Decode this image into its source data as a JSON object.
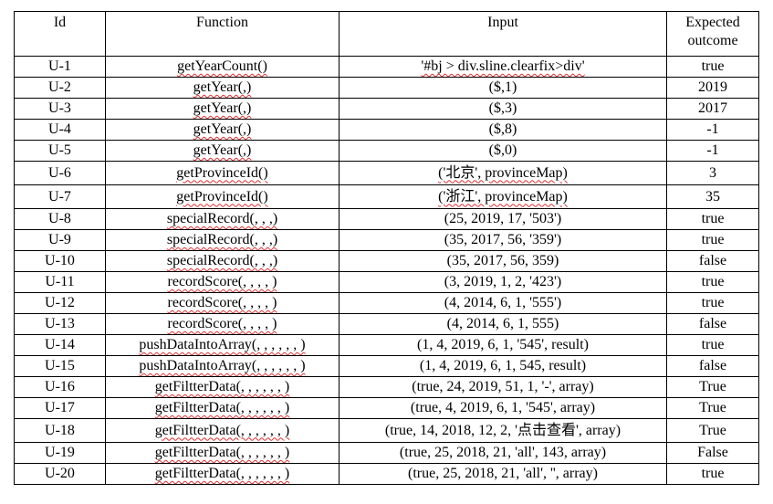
{
  "headers": {
    "id": "Id",
    "function": "Function",
    "input": "Input",
    "outcome_line1": "Expected",
    "outcome_line2": "outcome"
  },
  "rows": [
    {
      "id": "U-1",
      "function": "getYearCount()",
      "input": "'#bj > div.sline.clearfix>div'",
      "outcome": "true"
    },
    {
      "id": "U-2",
      "function": "getYear(,)",
      "input": "($,1)",
      "outcome": "2019"
    },
    {
      "id": "U-3",
      "function": "getYear(,)",
      "input": "($,3)",
      "outcome": "2017"
    },
    {
      "id": "U-4",
      "function": "getYear(,)",
      "input": "($,8)",
      "outcome": "-1"
    },
    {
      "id": "U-5",
      "function": "getYear(,)",
      "input": "($,0)",
      "outcome": "-1"
    },
    {
      "id": "U-6",
      "function": "getProvinceId()",
      "input": "('北京', provinceMap)",
      "outcome": "3"
    },
    {
      "id": "U-7",
      "function": "getProvinceId()",
      "input": "('浙江', provinceMap)",
      "outcome": "35"
    },
    {
      "id": "U-8",
      "function": "specialRecord(, , ,)",
      "input": "(25, 2019, 17, '503')",
      "outcome": "true"
    },
    {
      "id": "U-9",
      "function": "specialRecord(, , ,)",
      "input": "(35, 2017, 56, '359')",
      "outcome": "true"
    },
    {
      "id": "U-10",
      "function": "specialRecord(, , ,)",
      "input": "(35, 2017, 56, 359)",
      "outcome": "false"
    },
    {
      "id": "U-11",
      "function": "recordScore(, , , , )",
      "input": "(3, 2019, 1, 2, '423')",
      "outcome": "true"
    },
    {
      "id": "U-12",
      "function": "recordScore(, , , , )",
      "input": "(4, 2014, 6, 1, '555')",
      "outcome": "true"
    },
    {
      "id": "U-13",
      "function": "recordScore(, , , , )",
      "input": "(4, 2014, 6, 1, 555)",
      "outcome": "false"
    },
    {
      "id": "U-14",
      "function": "pushDataIntoArray(, , , , , , )",
      "input": "(1, 4, 2019, 6, 1, '545', result)",
      "outcome": "true"
    },
    {
      "id": "U-15",
      "function": "pushDataIntoArray(, , , , , , )",
      "input": "(1, 4, 2019, 6, 1, 545, result)",
      "outcome": "false"
    },
    {
      "id": "U-16",
      "function": "getFiltterData(, , , , , , )",
      "input": "(true, 24, 2019, 51, 1, '-', array)",
      "outcome": "True"
    },
    {
      "id": "U-17",
      "function": "getFiltterData(, , , , , , )",
      "input": "(true, 4, 2019, 6, 1, '545', array)",
      "outcome": "True"
    },
    {
      "id": "U-18",
      "function": "getFiltterData(, , , , , , )",
      "input": "(true, 14, 2018, 12, 2, '点击查看', array)",
      "outcome": "True"
    },
    {
      "id": "U-19",
      "function": "getFiltterData(, , , , , , )",
      "input": "(true, 25, 2018, 21, 'all', 143, array)",
      "outcome": "False"
    },
    {
      "id": "U-20",
      "function": "getFiltterData(, , , , , , )",
      "input": "(true, 25, 2018, 21, 'all', '', array)",
      "outcome": "true"
    }
  ]
}
